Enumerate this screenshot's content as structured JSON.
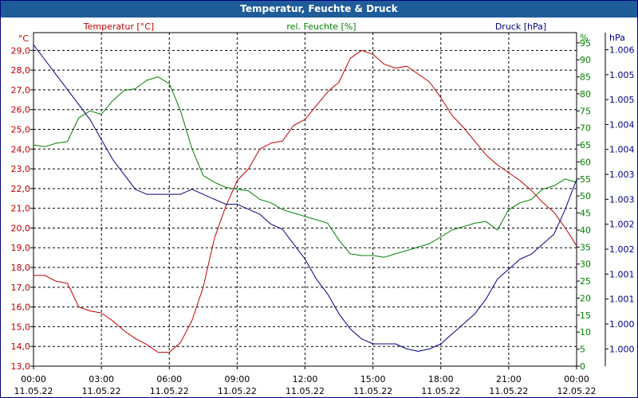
{
  "window": {
    "title": "Temperatur, Feuchte & Druck"
  },
  "chart_data": {
    "type": "line",
    "title": "Temperatur, Feuchte & Druck",
    "x_ticks": [
      {
        "time": "00:00",
        "date": "11.05.22"
      },
      {
        "time": "03:00",
        "date": "11.05.22"
      },
      {
        "time": "06:00",
        "date": "11.05.22"
      },
      {
        "time": "09:00",
        "date": "11.05.22"
      },
      {
        "time": "12:00",
        "date": "11.05.22"
      },
      {
        "time": "15:00",
        "date": "11.05.22"
      },
      {
        "time": "18:00",
        "date": "11.05.22"
      },
      {
        "time": "21:00",
        "date": "11.05.22"
      },
      {
        "time": "00:00",
        "date": "12.05.22"
      }
    ],
    "x_range_hours": [
      0,
      24
    ],
    "grid": true,
    "axes": {
      "temperature": {
        "label": "Temperatur [°C]",
        "unit": "°C",
        "color": "#c00000",
        "range": [
          13.0,
          29.9
        ],
        "ticks": [
          "13,0",
          "14,0",
          "15,0",
          "16,0",
          "17,0",
          "18,0",
          "19,0",
          "20,0",
          "21,0",
          "22,0",
          "23,0",
          "24,0",
          "25,0",
          "26,0",
          "27,0",
          "28,0",
          "29,0"
        ]
      },
      "humidity": {
        "label": "rel. Feuchte [%]",
        "unit": "%",
        "color": "#008000",
        "range": [
          0,
          98
        ],
        "ticks": [
          "0",
          "5",
          "10",
          "15",
          "20",
          "25",
          "30",
          "35",
          "40",
          "45",
          "50",
          "55",
          "60",
          "65",
          "70",
          "75",
          "80",
          "85",
          "90",
          "95"
        ]
      },
      "pressure": {
        "label": "Druck [hPa]",
        "unit": "hPa",
        "color": "#000080",
        "range": [
          999.653,
          1006.343
        ],
        "ticks": [
          "1.000",
          "1.000",
          "1.001",
          "1.001",
          "1.002",
          "1.002",
          "1.003",
          "1.003",
          "1.004",
          "1.004",
          "1.005",
          "1.005",
          "1.006"
        ],
        "tick_values": [
          1000.0,
          1000.5,
          1001.0,
          1001.5,
          1002.0,
          1002.5,
          1003.0,
          1003.5,
          1004.0,
          1004.5,
          1005.0,
          1005.5,
          1006.0
        ]
      }
    },
    "series": [
      {
        "name": "Temperatur",
        "axis": "temperature",
        "color": "#c00000",
        "points": [
          [
            0,
            17.6
          ],
          [
            0.5,
            17.6
          ],
          [
            1,
            17.3
          ],
          [
            1.5,
            17.2
          ],
          [
            2,
            16.0
          ],
          [
            2.5,
            15.8
          ],
          [
            3,
            15.7
          ],
          [
            3.5,
            15.3
          ],
          [
            4,
            14.8
          ],
          [
            4.5,
            14.4
          ],
          [
            5,
            14.1
          ],
          [
            5.5,
            13.7
          ],
          [
            6,
            13.7
          ],
          [
            6.5,
            14.2
          ],
          [
            7,
            15.3
          ],
          [
            7.5,
            17.0
          ],
          [
            8,
            19.5
          ],
          [
            8.5,
            21.1
          ],
          [
            9,
            22.4
          ],
          [
            9.5,
            23.0
          ],
          [
            10,
            24.0
          ],
          [
            10.5,
            24.3
          ],
          [
            11,
            24.4
          ],
          [
            11.5,
            25.2
          ],
          [
            12,
            25.5
          ],
          [
            12.5,
            26.2
          ],
          [
            13,
            26.9
          ],
          [
            13.5,
            27.4
          ],
          [
            14,
            28.6
          ],
          [
            14.5,
            29.0
          ],
          [
            15,
            28.8
          ],
          [
            15.5,
            28.3
          ],
          [
            16,
            28.1
          ],
          [
            16.5,
            28.2
          ],
          [
            17,
            27.8
          ],
          [
            17.5,
            27.4
          ],
          [
            18,
            26.6
          ],
          [
            18.5,
            25.7
          ],
          [
            19,
            25.1
          ],
          [
            19.5,
            24.4
          ],
          [
            20,
            23.7
          ],
          [
            20.5,
            23.2
          ],
          [
            21,
            22.8
          ],
          [
            21.5,
            22.4
          ],
          [
            22,
            21.9
          ],
          [
            22.5,
            21.3
          ],
          [
            23,
            20.8
          ],
          [
            23.5,
            20.0
          ],
          [
            24,
            19.1
          ]
        ]
      },
      {
        "name": "rel. Feuchte",
        "axis": "humidity",
        "color": "#008000",
        "points": [
          [
            0,
            65
          ],
          [
            0.5,
            64.5
          ],
          [
            1,
            65.5
          ],
          [
            1.5,
            66
          ],
          [
            2,
            73
          ],
          [
            2.5,
            75
          ],
          [
            3,
            74
          ],
          [
            3.5,
            78
          ],
          [
            4,
            81
          ],
          [
            4.5,
            81.5
          ],
          [
            5,
            84
          ],
          [
            5.5,
            85
          ],
          [
            6,
            83
          ],
          [
            6.5,
            75
          ],
          [
            7,
            64
          ],
          [
            7.5,
            56
          ],
          [
            8,
            54
          ],
          [
            8.5,
            52.5
          ],
          [
            9,
            52
          ],
          [
            9.5,
            51.5
          ],
          [
            10,
            49
          ],
          [
            10.5,
            48
          ],
          [
            11,
            46
          ],
          [
            11.5,
            45
          ],
          [
            12,
            44
          ],
          [
            12.5,
            43
          ],
          [
            13,
            42
          ],
          [
            13.5,
            37
          ],
          [
            14,
            33
          ],
          [
            14.5,
            32.5
          ],
          [
            15,
            32.5
          ],
          [
            15.5,
            32
          ],
          [
            16,
            33
          ],
          [
            16.5,
            34
          ],
          [
            17,
            35
          ],
          [
            17.5,
            36
          ],
          [
            18,
            38
          ],
          [
            18.5,
            40
          ],
          [
            19,
            41
          ],
          [
            19.5,
            42
          ],
          [
            20,
            42.5
          ],
          [
            20.5,
            40
          ],
          [
            21,
            46
          ],
          [
            21.5,
            48
          ],
          [
            22,
            49
          ],
          [
            22.5,
            52
          ],
          [
            23,
            53
          ],
          [
            23.5,
            55
          ],
          [
            24,
            54
          ]
        ]
      },
      {
        "name": "Druck",
        "axis": "pressure",
        "color": "#000080",
        "points": [
          [
            0,
            1006.1
          ],
          [
            0.5,
            1005.8
          ],
          [
            1,
            1005.5
          ],
          [
            1.5,
            1005.2
          ],
          [
            2,
            1004.9
          ],
          [
            2.5,
            1004.6
          ],
          [
            3,
            1004.2
          ],
          [
            3.5,
            1003.8
          ],
          [
            4,
            1003.5
          ],
          [
            4.5,
            1003.2
          ],
          [
            5,
            1003.1
          ],
          [
            5.5,
            1003.1
          ],
          [
            6,
            1003.1
          ],
          [
            6.5,
            1003.1
          ],
          [
            7,
            1003.2
          ],
          [
            7.5,
            1003.1
          ],
          [
            8,
            1003.0
          ],
          [
            8.5,
            1002.9
          ],
          [
            9,
            1002.9
          ],
          [
            9.5,
            1002.8
          ],
          [
            10,
            1002.7
          ],
          [
            10.5,
            1002.5
          ],
          [
            11,
            1002.4
          ],
          [
            11.5,
            1002.1
          ],
          [
            12,
            1001.8
          ],
          [
            12.5,
            1001.4
          ],
          [
            13,
            1001.1
          ],
          [
            13.5,
            1000.7
          ],
          [
            14,
            1000.4
          ],
          [
            14.5,
            1000.2
          ],
          [
            15,
            1000.1
          ],
          [
            15.5,
            1000.1
          ],
          [
            16,
            1000.1
          ],
          [
            16.5,
            1000.0
          ],
          [
            17,
            999.95
          ],
          [
            17.5,
            1000.0
          ],
          [
            18,
            1000.1
          ],
          [
            18.5,
            1000.3
          ],
          [
            19,
            1000.5
          ],
          [
            19.5,
            1000.7
          ],
          [
            20,
            1001.0
          ],
          [
            20.5,
            1001.4
          ],
          [
            21,
            1001.6
          ],
          [
            21.5,
            1001.8
          ],
          [
            22,
            1001.9
          ],
          [
            22.5,
            1002.1
          ],
          [
            23,
            1002.3
          ],
          [
            23.5,
            1002.8
          ],
          [
            24,
            1003.4
          ]
        ]
      }
    ]
  }
}
